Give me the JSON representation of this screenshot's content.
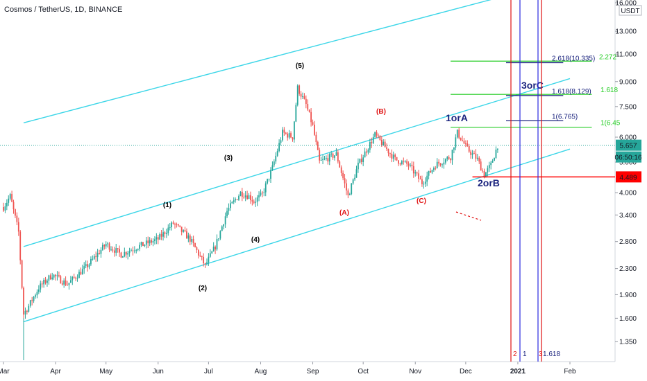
{
  "header": {
    "title": "Cosmos / TetherUS, 1D, BINANCE",
    "currency": "USDT"
  },
  "price_axis": {
    "ticks": [
      "16.000",
      "13.000",
      "11.000",
      "9.000",
      "7.500",
      "6.000",
      "5.000",
      "4.000",
      "3.400",
      "2.800",
      "2.300",
      "1.900",
      "1.600",
      "1.350"
    ],
    "badges": {
      "last_price": "5.657",
      "countdown": "06:50:16",
      "level": "4.489"
    }
  },
  "time_axis": {
    "labels": [
      "Mar",
      "Apr",
      "May",
      "Jun",
      "Jul",
      "Aug",
      "Sep",
      "Oct",
      "Nov",
      "Dec",
      "2021",
      "Feb"
    ]
  },
  "colors": {
    "channel": "#3cd6e8",
    "up": "#26a69a",
    "down": "#ef5350",
    "fib_green": "#22cc22",
    "fib_navy": "#1a237e",
    "navy_text": "#1a237e",
    "red": "#e01010",
    "blue_line": "#2a2ae0",
    "support": "#ff0000"
  },
  "wave_labels": {
    "w1": "(1)",
    "w2": "(2)",
    "w3": "(3)",
    "w4": "(4)",
    "w5": "(5)",
    "wA": "(A)",
    "wB": "(B)",
    "wC": "(C)"
  },
  "annotations": {
    "one_or_a": "1orA",
    "two_or_b": "2orB",
    "three_or_c": "3orC",
    "fib_1": "1(6.765)",
    "fib_1618": "1.618(8.129)",
    "fib_2618": "2.618(10.335)",
    "g_1": "1(6.45",
    "g_1618": "1.618",
    "g_2272": "2.272",
    "vline_2": "2",
    "vline_1": "1",
    "vline_1618": "1.618",
    "vline_3": "3"
  },
  "chart_data": {
    "type": "candlestick",
    "title": "Cosmos / TetherUS, 1D, BINANCE",
    "y_scale": "log",
    "ylim": [
      1.2,
      16.5
    ],
    "x_range": [
      "2020-03-01",
      "2021-02-28"
    ],
    "grid": false,
    "last_price": 5.657,
    "support_level": 4.489,
    "keypoints": [
      [
        "2020-03-01",
        3.6
      ],
      [
        "2020-03-05",
        3.9
      ],
      [
        "2020-03-10",
        3.0
      ],
      [
        "2020-03-13",
        1.65
      ],
      [
        "2020-03-16",
        1.75
      ],
      [
        "2020-03-22",
        2.0
      ],
      [
        "2020-03-30",
        2.2
      ],
      [
        "2020-04-08",
        2.05
      ],
      [
        "2020-04-20",
        2.35
      ],
      [
        "2020-05-01",
        2.75
      ],
      [
        "2020-05-10",
        2.55
      ],
      [
        "2020-05-20",
        2.7
      ],
      [
        "2020-06-01",
        2.85
      ],
      [
        "2020-06-10",
        3.2
      ],
      [
        "2020-06-20",
        2.85
      ],
      [
        "2020-06-29",
        2.35
      ],
      [
        "2020-07-05",
        2.7
      ],
      [
        "2020-07-12",
        3.5
      ],
      [
        "2020-07-20",
        4.0
      ],
      [
        "2020-07-25",
        3.9
      ],
      [
        "2020-07-28",
        3.75
      ],
      [
        "2020-08-02",
        3.95
      ],
      [
        "2020-08-08",
        4.8
      ],
      [
        "2020-08-14",
        6.2
      ],
      [
        "2020-08-20",
        6.0
      ],
      [
        "2020-08-23",
        8.6
      ],
      [
        "2020-08-28",
        7.6
      ],
      [
        "2020-09-01",
        6.5
      ],
      [
        "2020-09-05",
        5.0
      ],
      [
        "2020-09-15",
        5.3
      ],
      [
        "2020-09-22",
        3.9
      ],
      [
        "2020-09-28",
        4.9
      ],
      [
        "2020-10-08",
        6.1
      ],
      [
        "2020-10-20",
        5.1
      ],
      [
        "2020-10-28",
        4.9
      ],
      [
        "2020-11-05",
        4.3
      ],
      [
        "2020-11-13",
        4.9
      ],
      [
        "2020-11-22",
        5.2
      ],
      [
        "2020-11-26",
        6.2
      ],
      [
        "2020-12-02",
        5.5
      ],
      [
        "2020-12-08",
        5.1
      ],
      [
        "2020-12-12",
        4.55
      ],
      [
        "2020-12-16",
        4.9
      ],
      [
        "2020-12-20",
        5.657
      ]
    ],
    "fibonacci_levels": [
      {
        "ratio": 1,
        "price": 6.765
      },
      {
        "ratio": 1.618,
        "price": 8.129
      },
      {
        "ratio": 2.618,
        "price": 10.335
      }
    ],
    "fibonacci_levels_green": [
      {
        "ratio": 1,
        "price": 6.45
      },
      {
        "ratio": 1.618
      },
      {
        "ratio": 2.272
      }
    ],
    "channels": [
      {
        "name": "upper",
        "from": [
          "2020-03-13",
          6.66
        ],
        "to": [
          "2021-01-31",
          19.0
        ]
      },
      {
        "name": "middle",
        "from": [
          "2020-03-13",
          2.7
        ],
        "to": [
          "2021-02-01",
          9.2
        ]
      },
      {
        "name": "lower",
        "from": [
          "2020-03-13",
          1.56
        ],
        "to": [
          "2021-02-01",
          5.5
        ]
      }
    ],
    "wave_points": [
      {
        "label": "(1)",
        "date": "2020-06-10",
        "price": 3.2
      },
      {
        "label": "(2)",
        "date": "2020-06-29",
        "price": 2.35
      },
      {
        "label": "(3)",
        "date": "2020-07-20",
        "price": 4.0
      },
      {
        "label": "(4)",
        "date": "2020-08-02",
        "price": 3.95
      },
      {
        "label": "(5)",
        "date": "2020-08-23",
        "price": 8.6
      },
      {
        "label": "(A)",
        "date": "2020-09-22",
        "price": 3.9
      },
      {
        "label": "(B)",
        "date": "2020-10-08",
        "price": 6.1
      },
      {
        "label": "(C)",
        "date": "2020-11-05",
        "price": 4.3
      }
    ],
    "vertical_markers": [
      {
        "label": "2",
        "date": "2020-12-28"
      },
      {
        "label": "1",
        "date": "2021-01-01"
      },
      {
        "label": "1.618",
        "date": "2021-01-12"
      },
      {
        "label": "3",
        "date": "2021-01-14"
      }
    ]
  }
}
